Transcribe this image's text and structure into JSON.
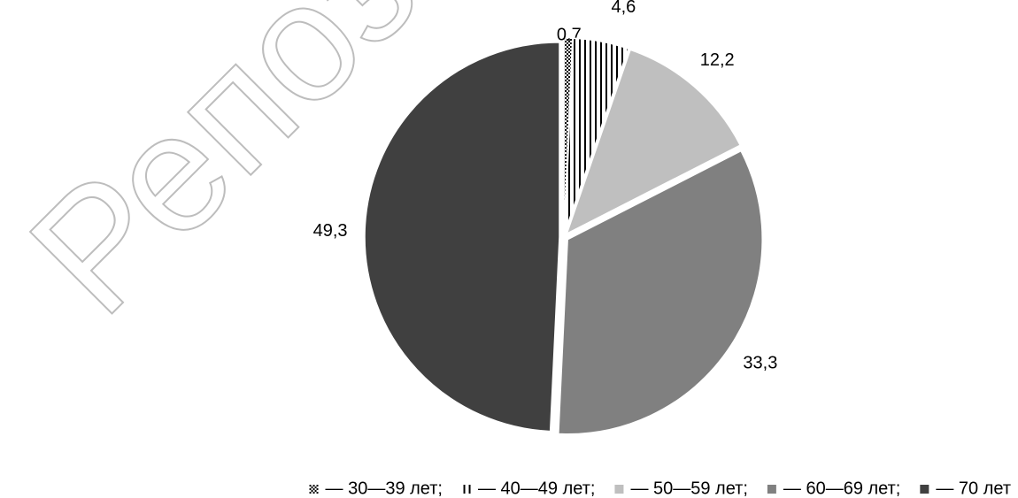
{
  "chart_data": {
    "type": "pie",
    "watermark": "Репози",
    "categories": [
      "— 30—39 лет;",
      "— 40—49 лет;",
      "— 50—59 лет;",
      "— 60—69 лет;",
      "— 70 лет"
    ],
    "values": [
      0.7,
      4.6,
      12.2,
      33.3,
      49.3
    ],
    "value_labels": [
      "0,7",
      "4,6",
      "12,2",
      "33,3",
      "49,3"
    ],
    "colors": [
      "#000000",
      "#000000",
      "#bfbfbf",
      "#808080",
      "#404040"
    ],
    "hatch": [
      "checker",
      "vertical",
      null,
      null,
      null
    ],
    "legend": "bottom"
  }
}
